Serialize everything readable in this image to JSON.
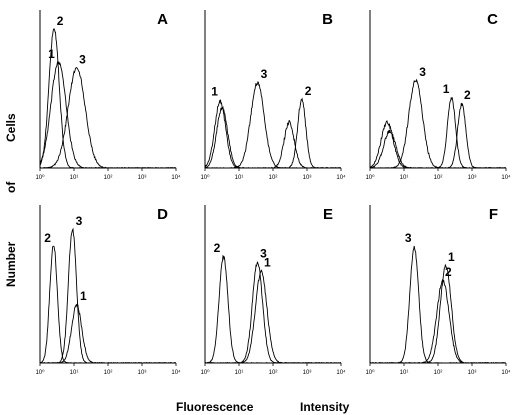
{
  "figure": {
    "ylabel_words": [
      "Cells",
      "of",
      "Number"
    ],
    "xlabel_words": [
      "Fluorescence",
      "Intensity"
    ]
  },
  "chart_data": [
    {
      "type": "line",
      "panel": "A",
      "xscale": "log",
      "xlim": [
        1,
        10000
      ],
      "xticks": [
        "10⁰",
        "10¹",
        "10²",
        "10³",
        "10⁴"
      ],
      "series": [
        {
          "label": "1",
          "peak_x": 3.5,
          "peak_height": 0.7,
          "sigma_decades": 0.22
        },
        {
          "label": "2",
          "peak_x": 2.6,
          "peak_height": 0.92,
          "sigma_decades": 0.15
        },
        {
          "label": "3",
          "peak_x": 12,
          "peak_height": 0.66,
          "sigma_decades": 0.25
        }
      ]
    },
    {
      "type": "line",
      "panel": "B",
      "xscale": "log",
      "xlim": [
        1,
        10000
      ],
      "xticks": [
        "10⁰",
        "10¹",
        "10²",
        "10³",
        "10⁴"
      ],
      "series": [
        {
          "label": "1",
          "peaks": [
            {
              "x": 2.8,
              "h": 0.44,
              "s": 0.16
            },
            {
              "x": 300,
              "h": 0.3,
              "s": 0.15
            }
          ]
        },
        {
          "label": "2",
          "peaks": [
            {
              "x": 3.2,
              "h": 0.4,
              "s": 0.16
            },
            {
              "x": 700,
              "h": 0.45,
              "s": 0.12
            }
          ]
        },
        {
          "label": "3",
          "peaks": [
            {
              "x": 35,
              "h": 0.56,
              "s": 0.2
            }
          ]
        }
      ]
    },
    {
      "type": "line",
      "panel": "C",
      "xscale": "log",
      "xlim": [
        1,
        10000
      ],
      "xticks": [
        "10⁰",
        "10¹",
        "10²",
        "10³",
        "10⁴"
      ],
      "series": [
        {
          "label": "1",
          "peaks": [
            {
              "x": 3.2,
              "h": 0.3,
              "s": 0.18
            },
            {
              "x": 250,
              "h": 0.46,
              "s": 0.12
            }
          ]
        },
        {
          "label": "2",
          "peaks": [
            {
              "x": 3.8,
              "h": 0.24,
              "s": 0.18
            },
            {
              "x": 500,
              "h": 0.42,
              "s": 0.12
            }
          ]
        },
        {
          "label": "3",
          "peaks": [
            {
              "x": 22,
              "h": 0.58,
              "s": 0.2
            }
          ]
        }
      ]
    },
    {
      "type": "line",
      "panel": "D",
      "xscale": "log",
      "xlim": [
        1,
        10000
      ],
      "xticks": [
        "10⁰",
        "10¹",
        "10²",
        "10³",
        "10⁴"
      ],
      "series": [
        {
          "label": "2",
          "peaks": [
            {
              "x": 2.5,
              "h": 0.78,
              "s": 0.11
            }
          ]
        },
        {
          "label": "3",
          "peaks": [
            {
              "x": 9,
              "h": 0.88,
              "s": 0.12
            }
          ]
        },
        {
          "label": "1",
          "peaks": [
            {
              "x": 12,
              "h": 0.38,
              "s": 0.15
            }
          ]
        }
      ]
    },
    {
      "type": "line",
      "panel": "E",
      "xscale": "log",
      "xlim": [
        1,
        10000
      ],
      "xticks": [
        "10⁰",
        "10¹",
        "10²",
        "10³",
        "10⁴"
      ],
      "series": [
        {
          "label": "2",
          "peaks": [
            {
              "x": 3.5,
              "h": 0.7,
              "s": 0.13
            }
          ]
        },
        {
          "label": "3",
          "peaks": [
            {
              "x": 35,
              "h": 0.66,
              "s": 0.15
            }
          ]
        },
        {
          "label": "1",
          "peaks": [
            {
              "x": 45,
              "h": 0.6,
              "s": 0.17
            }
          ]
        }
      ]
    },
    {
      "type": "line",
      "panel": "F",
      "xscale": "log",
      "xlim": [
        1,
        10000
      ],
      "xticks": [
        "10⁰",
        "10¹",
        "10²",
        "10³",
        "10⁴"
      ],
      "series": [
        {
          "label": "3",
          "peaks": [
            {
              "x": 20,
              "h": 0.76,
              "s": 0.13
            }
          ]
        },
        {
          "label": "2",
          "peaks": [
            {
              "x": 140,
              "h": 0.54,
              "s": 0.18
            }
          ]
        },
        {
          "label": "1",
          "peaks": [
            {
              "x": 170,
              "h": 0.64,
              "s": 0.16
            }
          ]
        }
      ]
    }
  ]
}
